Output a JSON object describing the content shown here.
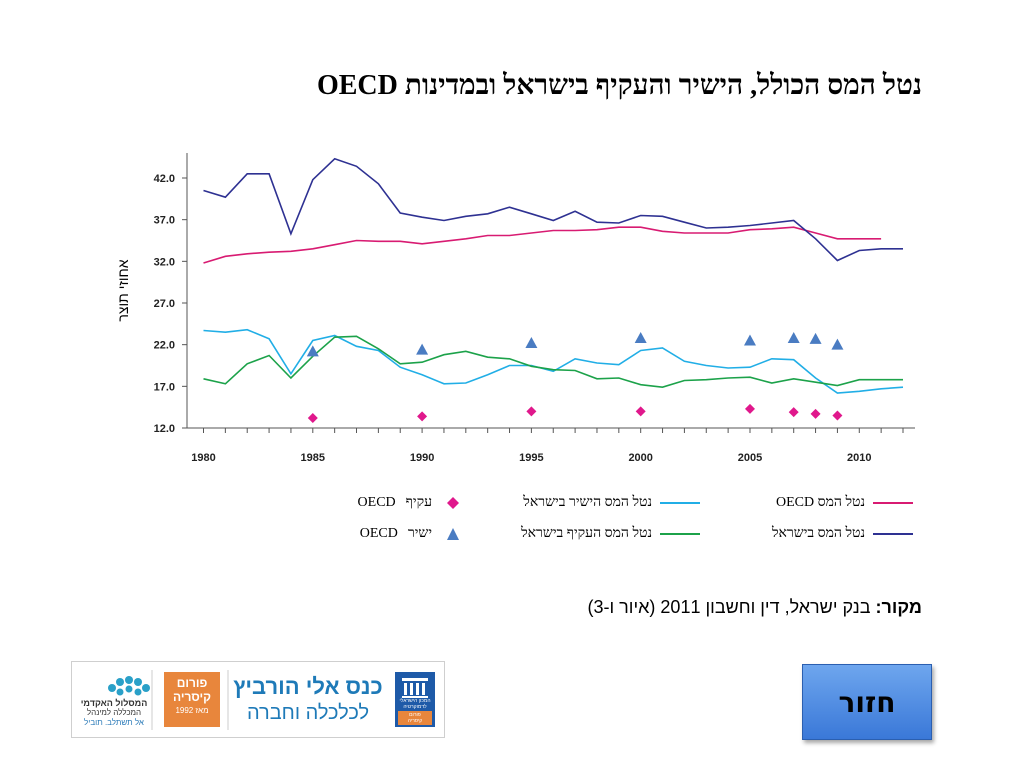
{
  "slide": {
    "title": "נטל המס הכולל, הישיר והעקיף בישראל ובמדינות OECD",
    "source_label": "מקור:",
    "source_text": " בנק ישראל, דין וחשבון 2011 (איור ו-3)",
    "back_button": "חזור"
  },
  "banner": {
    "logo1_line1": "המסלול האקדמי",
    "logo1_line2": "המכללה למינהל",
    "logo1_line3": "אל תשתלב. תוביל",
    "forum_line1": "פורום",
    "forum_line2": "קיסריה",
    "forum_line3": "מאז 1992",
    "conf_line1": "כנס אלי הורביץ",
    "conf_line2": "לכלכלה וחברה",
    "idi_line1": "המכון הישראלי",
    "idi_line2": "לדמוקרטיה",
    "idi_line3": "פורום",
    "idi_line4": "קיסריה"
  },
  "chart_data": {
    "type": "line",
    "title": "",
    "ylabel": "אחוזי תוצר",
    "xlabel": "",
    "xlim": [
      1980,
      2012
    ],
    "ylim": [
      12.0,
      45.0
    ],
    "xticks": [
      1980,
      1985,
      1990,
      1995,
      2000,
      2005,
      2010
    ],
    "yticks": [
      "12.0",
      "17.0",
      "22.0",
      "27.0",
      "32.0",
      "37.0",
      "42.0"
    ],
    "grid": false,
    "series": [
      {
        "name": "נטל המס OECD",
        "kind": "line",
        "color": "#d81b72",
        "x": [
          1980,
          1981,
          1982,
          1983,
          1984,
          1985,
          1986,
          1987,
          1988,
          1989,
          1990,
          1991,
          1992,
          1993,
          1994,
          1995,
          1996,
          1997,
          1998,
          1999,
          2000,
          2001,
          2002,
          2003,
          2004,
          2005,
          2006,
          2007,
          2008,
          2009,
          2010,
          2011
        ],
        "y": [
          31.8,
          32.6,
          32.9,
          33.1,
          33.2,
          33.5,
          34.0,
          34.5,
          34.4,
          34.4,
          34.1,
          34.4,
          34.7,
          35.1,
          35.1,
          35.4,
          35.7,
          35.7,
          35.8,
          36.1,
          36.1,
          35.6,
          35.4,
          35.4,
          35.4,
          35.8,
          35.9,
          36.1,
          35.4,
          34.7,
          34.7,
          34.7
        ]
      },
      {
        "name": "נטל המס בישראל",
        "kind": "line",
        "color": "#2e3192",
        "x": [
          1980,
          1981,
          1982,
          1983,
          1984,
          1985,
          1986,
          1987,
          1988,
          1989,
          1990,
          1991,
          1992,
          1993,
          1994,
          1995,
          1996,
          1997,
          1998,
          1999,
          2000,
          2001,
          2002,
          2003,
          2004,
          2005,
          2006,
          2007,
          2008,
          2009,
          2010,
          2011,
          2012
        ],
        "y": [
          40.5,
          39.7,
          42.5,
          42.5,
          35.3,
          41.8,
          44.3,
          43.4,
          41.3,
          37.8,
          37.3,
          36.9,
          37.4,
          37.7,
          38.5,
          37.7,
          36.9,
          38.0,
          36.7,
          36.6,
          37.5,
          37.4,
          36.7,
          36.0,
          36.1,
          36.3,
          36.6,
          36.9,
          34.7,
          32.1,
          33.3,
          33.5,
          33.5
        ]
      },
      {
        "name": "נטל המס הישיר בישראל",
        "kind": "line",
        "color": "#21aee6",
        "x": [
          1980,
          1981,
          1982,
          1983,
          1984,
          1985,
          1986,
          1987,
          1988,
          1989,
          1990,
          1991,
          1992,
          1993,
          1994,
          1995,
          1996,
          1997,
          1998,
          1999,
          2000,
          2001,
          2002,
          2003,
          2004,
          2005,
          2006,
          2007,
          2008,
          2009,
          2010,
          2011,
          2012
        ],
        "y": [
          23.7,
          23.5,
          23.8,
          22.7,
          18.5,
          22.5,
          23.1,
          21.8,
          21.3,
          19.3,
          18.4,
          17.3,
          17.4,
          18.4,
          19.5,
          19.5,
          18.8,
          20.3,
          19.8,
          19.6,
          21.3,
          21.6,
          20.0,
          19.5,
          19.2,
          19.3,
          20.3,
          20.2,
          18.0,
          16.2,
          16.4,
          16.7,
          16.9
        ]
      },
      {
        "name": "נטל המס העקיף בישראל",
        "kind": "line",
        "color": "#1ca24a",
        "x": [
          1980,
          1981,
          1982,
          1983,
          1984,
          1985,
          1986,
          1987,
          1988,
          1989,
          1990,
          1991,
          1992,
          1993,
          1994,
          1995,
          1996,
          1997,
          1998,
          1999,
          2000,
          2001,
          2002,
          2003,
          2004,
          2005,
          2006,
          2007,
          2008,
          2009,
          2010,
          2011,
          2012
        ],
        "y": [
          17.9,
          17.3,
          19.7,
          20.7,
          18.0,
          20.6,
          22.9,
          23.0,
          21.5,
          19.7,
          19.9,
          20.8,
          21.2,
          20.5,
          20.3,
          19.4,
          19.0,
          18.9,
          17.9,
          18.0,
          17.2,
          16.9,
          17.7,
          17.8,
          18.0,
          18.1,
          17.4,
          17.9,
          17.5,
          17.1,
          17.8,
          17.8,
          17.8
        ]
      },
      {
        "name": "ישיר OECD",
        "kind": "marker",
        "marker": "triangle",
        "color": "#4a7cc2",
        "x": [
          1985,
          1990,
          1995,
          2000,
          2005,
          2007,
          2008,
          2009
        ],
        "y": [
          21.2,
          21.4,
          22.2,
          22.8,
          22.5,
          22.8,
          22.7,
          22.0
        ]
      },
      {
        "name": "עקיף OECD",
        "kind": "marker",
        "marker": "diamond",
        "color": "#e0188c",
        "x": [
          1985,
          1990,
          1995,
          2000,
          2005,
          2007,
          2008,
          2009
        ],
        "y": [
          13.2,
          13.4,
          14.0,
          14.0,
          14.3,
          13.9,
          13.7,
          13.5
        ]
      }
    ],
    "legend": {
      "placement": "bottom",
      "items": [
        {
          "label": "נטל המס OECD",
          "series": 0,
          "kind": "line",
          "color": "#d81b72"
        },
        {
          "label": "נטל המס הישיר בישראל",
          "series": 2,
          "kind": "line",
          "color": "#21aee6"
        },
        {
          "label_word": "עקיף",
          "label_suffix": "OECD",
          "series": 5,
          "kind": "diamond",
          "color": "#e0188c"
        },
        {
          "label": "נטל המס בישראל",
          "series": 1,
          "kind": "line",
          "color": "#2e3192"
        },
        {
          "label": "נטל המס העקיף בישראל",
          "series": 3,
          "kind": "line",
          "color": "#1ca24a"
        },
        {
          "label_word": "ישיר",
          "label_suffix": "OECD",
          "series": 4,
          "kind": "triangle",
          "color": "#4a7cc2"
        }
      ]
    }
  }
}
